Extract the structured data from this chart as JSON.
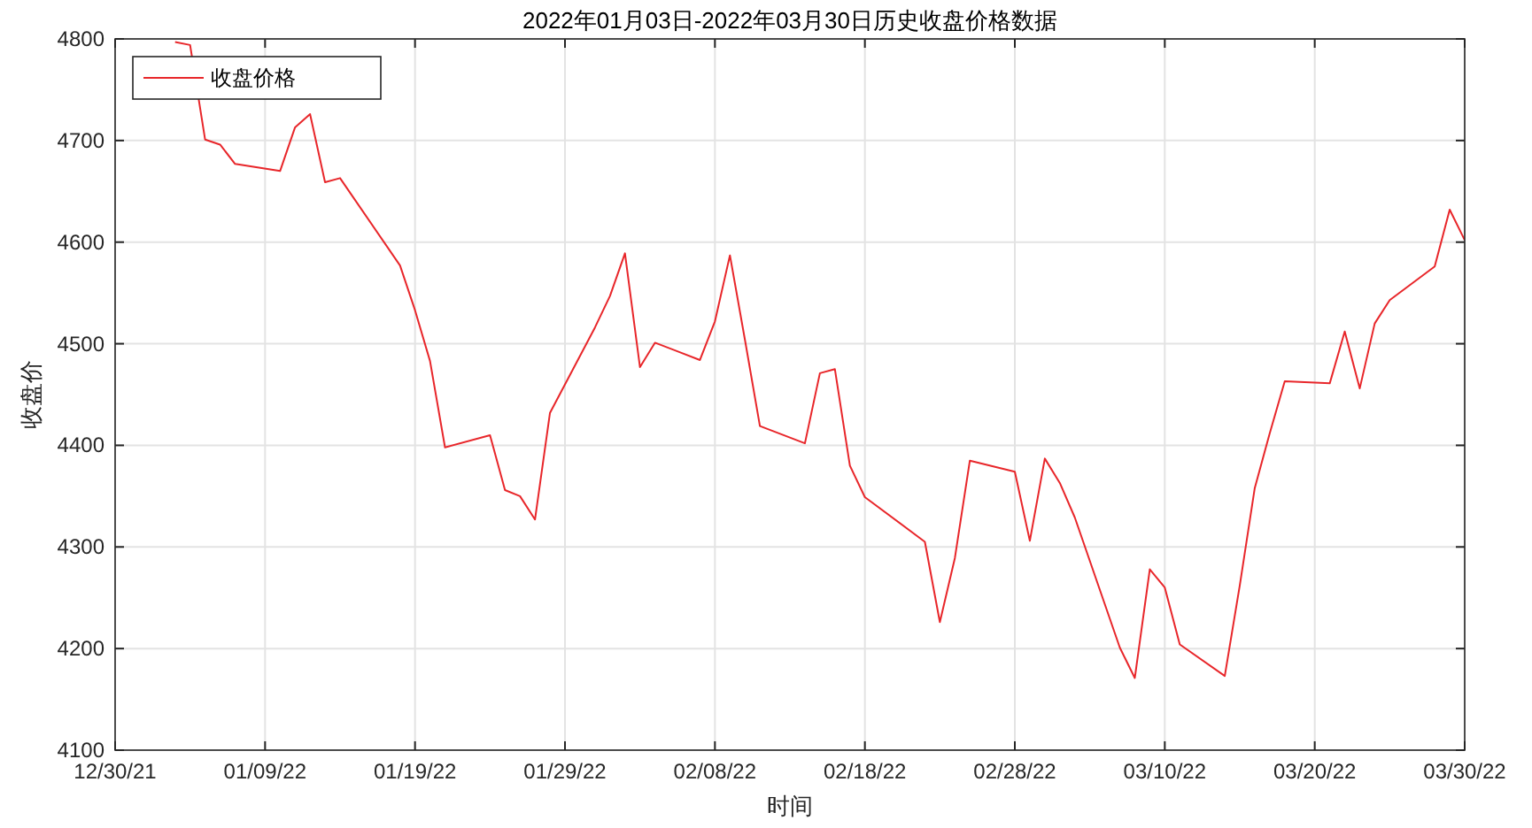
{
  "chart_data": {
    "type": "line",
    "title": "2022年01月03日-2022年03月30日历史收盘价格数据",
    "xlabel": "时间",
    "ylabel": "收盘价",
    "x": [
      "2022-01-03",
      "2022-01-04",
      "2022-01-05",
      "2022-01-06",
      "2022-01-07",
      "2022-01-10",
      "2022-01-11",
      "2022-01-12",
      "2022-01-13",
      "2022-01-14",
      "2022-01-18",
      "2022-01-19",
      "2022-01-20",
      "2022-01-21",
      "2022-01-24",
      "2022-01-25",
      "2022-01-26",
      "2022-01-27",
      "2022-01-28",
      "2022-01-31",
      "2022-02-01",
      "2022-02-02",
      "2022-02-03",
      "2022-02-04",
      "2022-02-07",
      "2022-02-08",
      "2022-02-09",
      "2022-02-10",
      "2022-02-11",
      "2022-02-14",
      "2022-02-15",
      "2022-02-16",
      "2022-02-17",
      "2022-02-18",
      "2022-02-22",
      "2022-02-23",
      "2022-02-24",
      "2022-02-25",
      "2022-02-28",
      "2022-03-01",
      "2022-03-02",
      "2022-03-03",
      "2022-03-04",
      "2022-03-07",
      "2022-03-08",
      "2022-03-09",
      "2022-03-10",
      "2022-03-11",
      "2022-03-14",
      "2022-03-15",
      "2022-03-16",
      "2022-03-17",
      "2022-03-18",
      "2022-03-21",
      "2022-03-22",
      "2022-03-23",
      "2022-03-24",
      "2022-03-25",
      "2022-03-28",
      "2022-03-29",
      "2022-03-30"
    ],
    "series": [
      {
        "name": "收盘价格",
        "color": "#e8262a",
        "values": [
          4797,
          4794,
          4701,
          4696,
          4677,
          4670,
          4713,
          4726,
          4659,
          4663,
          4577,
          4533,
          4483,
          4398,
          4410,
          4356,
          4350,
          4327,
          4432,
          4516,
          4547,
          4589,
          4477,
          4501,
          4484,
          4522,
          4587,
          4504,
          4419,
          4402,
          4471,
          4475,
          4380,
          4349,
          4305,
          4226,
          4289,
          4385,
          4374,
          4306,
          4387,
          4363,
          4329,
          4201,
          4171,
          4278,
          4260,
          4204,
          4173,
          4262,
          4358,
          4412,
          4463,
          4461,
          4512,
          4456,
          4520,
          4543,
          4576,
          4632,
          4602
        ]
      }
    ],
    "xlim": [
      "2021-12-30",
      "2022-03-30"
    ],
    "xticks": [
      {
        "value": "2021-12-30",
        "label": "12/30/21"
      },
      {
        "value": "2022-01-09",
        "label": "01/09/22"
      },
      {
        "value": "2022-01-19",
        "label": "01/19/22"
      },
      {
        "value": "2022-01-29",
        "label": "01/29/22"
      },
      {
        "value": "2022-02-08",
        "label": "02/08/22"
      },
      {
        "value": "2022-02-18",
        "label": "02/18/22"
      },
      {
        "value": "2022-02-28",
        "label": "02/28/22"
      },
      {
        "value": "2022-03-10",
        "label": "03/10/22"
      },
      {
        "value": "2022-03-20",
        "label": "03/20/22"
      },
      {
        "value": "2022-03-30",
        "label": "03/30/22"
      }
    ],
    "ylim": [
      4100,
      4800
    ],
    "yticks": [
      4100,
      4200,
      4300,
      4400,
      4500,
      4600,
      4700,
      4800
    ],
    "grid": true,
    "legend": "top left",
    "line_style": "solid"
  }
}
